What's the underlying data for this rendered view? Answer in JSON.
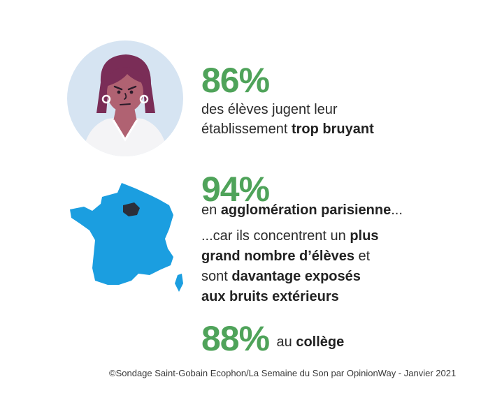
{
  "stat1": {
    "value": "86%",
    "line1": "des élèves jugent leur",
    "line2_pre": "établissement ",
    "line2_bold": "trop bruyant"
  },
  "stat2": {
    "value": "94%",
    "line1_pre": "en ",
    "line1_bold": "agglomération parisienne",
    "line1_post": "..."
  },
  "explanation": {
    "l1_pre": "...car ils concentrent un ",
    "l1_bold": "plus",
    "l2_bold": "grand nombre d’élèves",
    "l2_post": " et",
    "l3_pre": "sont ",
    "l3_bold": "davantage exposés",
    "l4_bold": "aux bruits extérieurs"
  },
  "stat3": {
    "value": "88%",
    "pre": "au ",
    "bold": "collège"
  },
  "footer": {
    "source": "©Sondage Saint-Gobain Ecophon/La Semaine du Son par OpinionWay - Janvier 2021"
  },
  "colors": {
    "accent_green": "#4fa35a",
    "map_blue": "#1b9ee0",
    "paris_region": "#2b2f3a",
    "avatar_bg": "#d6e4f2",
    "hair": "#7a2d57",
    "skin": "#b06272"
  },
  "icons": {
    "avatar": "student-annoyed-illustration",
    "map": "france-map-illustration"
  }
}
